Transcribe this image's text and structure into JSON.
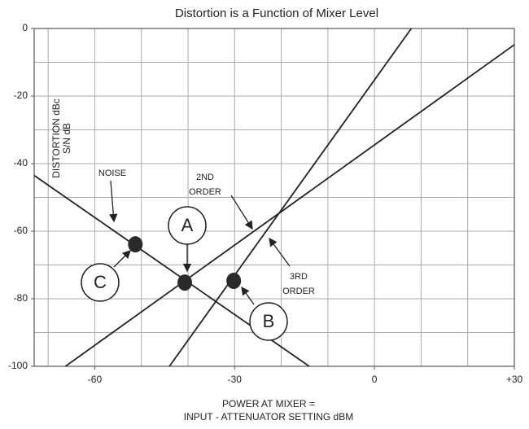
{
  "chart_data": {
    "type": "line",
    "title": "Distortion is a Function of Mixer Level",
    "x_label": [
      "POWER AT MIXER =",
      "INPUT - ATTENUATOR SETTING dBM"
    ],
    "y_label": [
      "DISTORTION dBc",
      "S/N dB"
    ],
    "xlim": [
      -73,
      30
    ],
    "ylim": [
      -100,
      0
    ],
    "xticks": [
      -60,
      -30,
      0,
      {
        "value": 30,
        "label": "+30"
      }
    ],
    "yticks": [
      0,
      -20,
      -40,
      -60,
      -80,
      -100
    ],
    "xgrid": [
      -70,
      -60,
      -50,
      -40,
      -30,
      -20,
      -10,
      0,
      10,
      20,
      30
    ],
    "ygrid": [
      0,
      -10,
      -20,
      -30,
      -40,
      -50,
      -60,
      -70,
      -80,
      -90,
      -100
    ],
    "series": [
      {
        "color": "#222222",
        "x": [
          -73,
          -14
        ],
        "values": [
          -43.5,
          -100
        ]
      },
      {
        "color": "#222222",
        "x": [
          -66.3,
          30
        ],
        "values": [
          -100,
          -4.8
        ]
      },
      {
        "color": "#222222",
        "x": [
          -44,
          7.9
        ],
        "values": [
          -100,
          0
        ]
      }
    ],
    "points": {
      "color": "#2a2a2a",
      "x": [
        -51.3,
        -40.7,
        -30.2
      ],
      "values": [
        -63.9,
        -75.2,
        -74.7
      ]
    },
    "annotations": [
      {
        "lines": [
          "NOISE"
        ]
      },
      {
        "lines": [
          "2ND",
          "ORDER"
        ]
      },
      {
        "lines": [
          "3RD",
          "ORDER"
        ]
      }
    ],
    "callouts": [
      "A",
      "B",
      "C"
    ]
  }
}
